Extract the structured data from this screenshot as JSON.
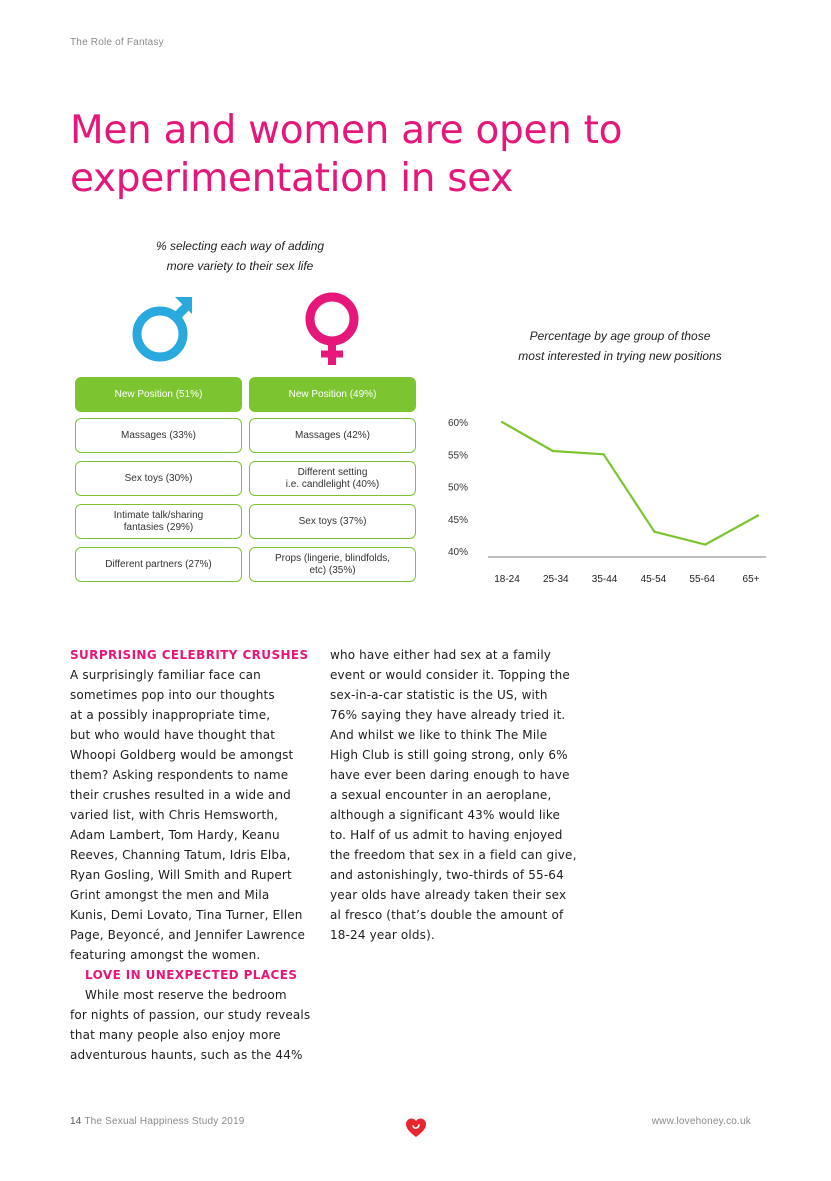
{
  "page": {
    "section": "The Role of Fantasy",
    "headline": [
      "Men and women are open to",
      "experimentation in sex"
    ]
  },
  "colors": {
    "pink": "#e5177b",
    "green": "#7dc431",
    "blue": "#2aa9df"
  },
  "infographic": {
    "caption": [
      "% selecting each way of adding",
      "more variety to their sex life"
    ],
    "male_icon": "male-symbol-icon",
    "female_icon": "female-symbol-icon",
    "men": [
      {
        "lines": [
          "New Position (51%)"
        ]
      },
      {
        "lines": [
          "Massages (33%)"
        ]
      },
      {
        "lines": [
          "Sex toys (30%)"
        ]
      },
      {
        "lines": [
          "Intimate talk/sharing",
          "fantasies (29%)"
        ]
      },
      {
        "lines": [
          "Different partners (27%)"
        ]
      }
    ],
    "women": [
      {
        "lines": [
          "New Position (49%)"
        ]
      },
      {
        "lines": [
          "Massages (42%)"
        ]
      },
      {
        "lines": [
          "Different setting",
          "i.e. candlelight (40%)"
        ]
      },
      {
        "lines": [
          "Sex toys (37%)"
        ]
      },
      {
        "lines": [
          "Props (lingerie, blindfolds,",
          "etc) (35%)"
        ]
      }
    ]
  },
  "chart_data": {
    "type": "line",
    "title": "Percentage by age group of those most interested in trying new positions",
    "title_lines": [
      "Percentage by age group of those",
      "most interested in trying new positions"
    ],
    "categories": [
      "18-24",
      "25-34",
      "35-44",
      "45-54",
      "55-64",
      "65+"
    ],
    "series": [
      {
        "name": "Most interested in trying new positions",
        "values": [
          60,
          55.5,
          55,
          43,
          41,
          45.5
        ]
      }
    ],
    "yticks": [
      "60%",
      "55%",
      "50%",
      "45%",
      "40%"
    ],
    "ylim": [
      40,
      60
    ],
    "xlabel": "",
    "ylabel": "",
    "grid": false
  },
  "article": {
    "col1": {
      "heading1": "SURPRISING CELEBRITY CRUSHES",
      "para1": [
        "A surprisingly familiar face can",
        "sometimes pop into our thoughts",
        "at a possibly inappropriate time,",
        "but who would have thought that",
        "Whoopi Goldberg would be amongst",
        "them? Asking respondents to name",
        "their crushes resulted in a wide and",
        "varied list, with Chris Hemsworth,",
        "Adam Lambert, Tom Hardy, Keanu",
        "Reeves, Channing Tatum, Idris Elba,",
        "Ryan Gosling, Will Smith and Rupert",
        "Grint amongst the men and Mila",
        "Kunis, Demi Lovato, Tina Turner, Ellen",
        "Page, Beyoncé, and Jennifer Lawrence",
        "featuring amongst the women."
      ],
      "heading2": "LOVE IN UNEXPECTED PLACES",
      "para2": [
        "While most reserve the bedroom",
        "for nights of passion, our study reveals",
        "that many people also enjoy more",
        "adventurous haunts, such as the 44%"
      ]
    },
    "col2": [
      "who have either had sex at a family",
      "event or would consider it. Topping the",
      "sex-in-a-car statistic is the US, with",
      "76% saying they have already tried it.",
      "And whilst we like to think The Mile",
      "High Club is still going strong, only 6%",
      "have ever been daring enough to have",
      "a sexual encounter in an aeroplane,",
      "although a significant 43% would like",
      "to. Half of us admit to having enjoyed",
      "the freedom that sex in a field can give,",
      "and astonishingly, two-thirds of 55-64",
      "year olds have already taken their sex",
      "al fresco (that’s double the amount of",
      "18-24 year olds)."
    ]
  },
  "footer": {
    "page_number": "14",
    "study": "The Sexual Happiness Study 2019",
    "logo_icon": "lovehoney-heart-icon",
    "url": "www.lovehoney.co.uk"
  }
}
